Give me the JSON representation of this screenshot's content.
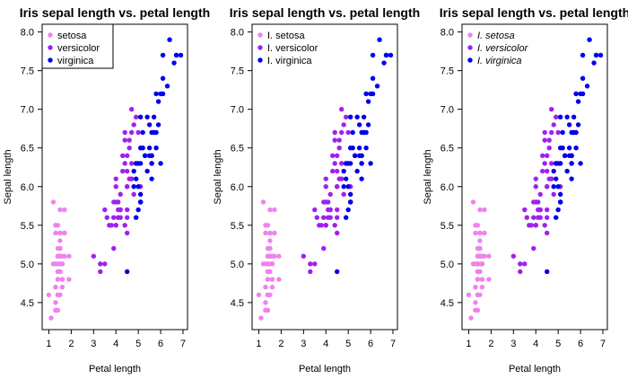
{
  "chart_data": [
    {
      "type": "scatter",
      "title": "Iris sepal length vs. petal length",
      "xlabel": "Petal length",
      "ylabel": "Sepal length",
      "xlim": [
        0.7,
        7.2
      ],
      "ylim": [
        4.15,
        8.1
      ],
      "xticks": [
        1,
        2,
        3,
        4,
        5,
        6,
        7
      ],
      "yticks": [
        "4.5",
        "5.0",
        "5.5",
        "6.0",
        "6.5",
        "7.0",
        "7.5",
        "8.0"
      ],
      "grid": false,
      "legend": {
        "position": "top-left",
        "boxed": true,
        "italic": false
      },
      "series": [
        {
          "name": "setosa",
          "color": "#ee82ee",
          "points": [
            [
              1.4,
              5.1
            ],
            [
              1.4,
              4.9
            ],
            [
              1.3,
              4.7
            ],
            [
              1.5,
              4.6
            ],
            [
              1.4,
              5.0
            ],
            [
              1.7,
              5.4
            ],
            [
              1.4,
              4.6
            ],
            [
              1.5,
              5.0
            ],
            [
              1.4,
              4.4
            ],
            [
              1.5,
              4.9
            ],
            [
              1.5,
              5.4
            ],
            [
              1.6,
              4.8
            ],
            [
              1.4,
              4.8
            ],
            [
              1.1,
              4.3
            ],
            [
              1.2,
              5.8
            ],
            [
              1.5,
              5.7
            ],
            [
              1.3,
              5.4
            ],
            [
              1.4,
              5.1
            ],
            [
              1.7,
              5.7
            ],
            [
              1.5,
              5.1
            ],
            [
              1.7,
              5.4
            ],
            [
              1.5,
              5.1
            ],
            [
              1.0,
              4.6
            ],
            [
              1.7,
              5.1
            ],
            [
              1.9,
              4.8
            ],
            [
              1.6,
              5.0
            ],
            [
              1.6,
              5.0
            ],
            [
              1.5,
              5.2
            ],
            [
              1.4,
              5.2
            ],
            [
              1.6,
              4.7
            ],
            [
              1.6,
              4.8
            ],
            [
              1.5,
              5.4
            ],
            [
              1.5,
              5.2
            ],
            [
              1.4,
              5.5
            ],
            [
              1.5,
              4.9
            ],
            [
              1.2,
              5.0
            ],
            [
              1.3,
              5.5
            ],
            [
              1.4,
              4.9
            ],
            [
              1.3,
              4.4
            ],
            [
              1.5,
              5.1
            ],
            [
              1.3,
              5.0
            ],
            [
              1.3,
              4.5
            ],
            [
              1.3,
              4.4
            ],
            [
              1.6,
              5.0
            ],
            [
              1.9,
              5.1
            ],
            [
              1.4,
              4.8
            ],
            [
              1.6,
              5.1
            ],
            [
              1.4,
              4.6
            ],
            [
              1.5,
              5.3
            ],
            [
              1.4,
              5.0
            ]
          ]
        },
        {
          "name": "versicolor",
          "color": "#a020f0",
          "points": [
            [
              4.7,
              7.0
            ],
            [
              4.5,
              6.4
            ],
            [
              4.9,
              6.9
            ],
            [
              4.0,
              5.5
            ],
            [
              4.6,
              6.5
            ],
            [
              4.5,
              5.7
            ],
            [
              4.7,
              6.3
            ],
            [
              3.3,
              4.9
            ],
            [
              4.6,
              6.6
            ],
            [
              3.9,
              5.2
            ],
            [
              3.5,
              5.0
            ],
            [
              4.2,
              5.9
            ],
            [
              4.0,
              6.0
            ],
            [
              4.7,
              6.1
            ],
            [
              3.6,
              5.6
            ],
            [
              4.4,
              6.7
            ],
            [
              4.5,
              5.6
            ],
            [
              4.1,
              5.8
            ],
            [
              4.5,
              6.2
            ],
            [
              3.9,
              5.6
            ],
            [
              4.8,
              5.9
            ],
            [
              4.0,
              6.1
            ],
            [
              4.9,
              6.3
            ],
            [
              4.7,
              6.1
            ],
            [
              4.3,
              6.4
            ],
            [
              4.4,
              6.6
            ],
            [
              4.8,
              6.8
            ],
            [
              5.0,
              6.7
            ],
            [
              4.5,
              6.0
            ],
            [
              3.5,
              5.7
            ],
            [
              3.8,
              5.5
            ],
            [
              3.7,
              5.5
            ],
            [
              3.9,
              5.8
            ],
            [
              5.1,
              6.0
            ],
            [
              4.5,
              5.4
            ],
            [
              4.5,
              6.0
            ],
            [
              4.7,
              6.7
            ],
            [
              4.4,
              6.3
            ],
            [
              4.1,
              5.6
            ],
            [
              4.0,
              5.5
            ],
            [
              4.4,
              5.5
            ],
            [
              4.6,
              6.1
            ],
            [
              4.0,
              5.8
            ],
            [
              3.3,
              5.0
            ],
            [
              4.2,
              5.6
            ],
            [
              4.2,
              5.7
            ],
            [
              4.2,
              5.7
            ],
            [
              4.3,
              6.2
            ],
            [
              3.0,
              5.1
            ],
            [
              4.1,
              5.7
            ]
          ]
        },
        {
          "name": "virginica",
          "color": "#0000ee",
          "points": [
            [
              6.0,
              6.3
            ],
            [
              5.1,
              5.8
            ],
            [
              5.9,
              7.1
            ],
            [
              5.6,
              6.3
            ],
            [
              5.8,
              6.5
            ],
            [
              6.6,
              7.6
            ],
            [
              4.5,
              4.9
            ],
            [
              6.3,
              7.3
            ],
            [
              5.8,
              6.7
            ],
            [
              6.1,
              7.2
            ],
            [
              5.1,
              6.5
            ],
            [
              5.3,
              6.4
            ],
            [
              5.5,
              6.8
            ],
            [
              5.0,
              5.7
            ],
            [
              5.1,
              5.8
            ],
            [
              5.3,
              6.4
            ],
            [
              5.5,
              6.5
            ],
            [
              6.7,
              7.7
            ],
            [
              6.9,
              7.7
            ],
            [
              5.0,
              6.0
            ],
            [
              5.7,
              6.9
            ],
            [
              4.9,
              5.6
            ],
            [
              6.7,
              7.7
            ],
            [
              4.9,
              6.3
            ],
            [
              5.7,
              6.7
            ],
            [
              6.0,
              7.2
            ],
            [
              4.8,
              6.2
            ],
            [
              4.9,
              6.1
            ],
            [
              5.6,
              6.4
            ],
            [
              5.8,
              7.2
            ],
            [
              6.1,
              7.4
            ],
            [
              6.4,
              7.9
            ],
            [
              5.6,
              6.4
            ],
            [
              5.1,
              6.3
            ],
            [
              5.6,
              6.1
            ],
            [
              6.1,
              7.7
            ],
            [
              5.6,
              6.3
            ],
            [
              5.5,
              6.4
            ],
            [
              4.8,
              6.0
            ],
            [
              5.4,
              6.9
            ],
            [
              5.6,
              6.7
            ],
            [
              5.1,
              6.9
            ],
            [
              5.1,
              5.8
            ],
            [
              5.9,
              6.8
            ],
            [
              5.7,
              6.7
            ],
            [
              5.2,
              6.7
            ],
            [
              5.0,
              6.3
            ],
            [
              5.2,
              6.5
            ],
            [
              5.4,
              6.2
            ],
            [
              5.1,
              5.9
            ]
          ]
        }
      ]
    },
    {
      "type": "scatter",
      "title": "Iris sepal length vs. petal length",
      "xlabel": "Petal length",
      "ylabel": "Sepal length",
      "xlim": [
        0.7,
        7.2
      ],
      "ylim": [
        4.15,
        8.1
      ],
      "xticks": [
        1,
        2,
        3,
        4,
        5,
        6,
        7
      ],
      "yticks": [
        "4.5",
        "5.0",
        "5.5",
        "6.0",
        "6.5",
        "7.0",
        "7.5",
        "8.0"
      ],
      "grid": false,
      "legend": {
        "position": "top-left",
        "boxed": false,
        "italic": false
      },
      "series": [
        {
          "name": "I. setosa",
          "color": "#ee82ee",
          "points": "same as panel 1"
        },
        {
          "name": "I. versicolor",
          "color": "#a020f0",
          "points": "same as panel 1"
        },
        {
          "name": "I. virginica",
          "color": "#0000ee",
          "points": "same as panel 1"
        }
      ]
    },
    {
      "type": "scatter",
      "title": "Iris sepal length vs. petal length",
      "xlabel": "Petal length",
      "ylabel": "Sepal length",
      "xlim": [
        0.7,
        7.2
      ],
      "ylim": [
        4.15,
        8.1
      ],
      "xticks": [
        1,
        2,
        3,
        4,
        5,
        6,
        7
      ],
      "yticks": [
        "4.5",
        "5.0",
        "5.5",
        "6.0",
        "6.5",
        "7.0",
        "7.5",
        "8.0"
      ],
      "grid": false,
      "legend": {
        "position": "top-left",
        "boxed": false,
        "italic": true
      },
      "series": [
        {
          "name": "I. setosa",
          "color": "#ee82ee",
          "points": "same as panel 1"
        },
        {
          "name": "I. versicolor",
          "color": "#a020f0",
          "points": "same as panel 1"
        },
        {
          "name": "I. virginica",
          "color": "#0000ee",
          "points": "same as panel 1"
        }
      ]
    }
  ]
}
